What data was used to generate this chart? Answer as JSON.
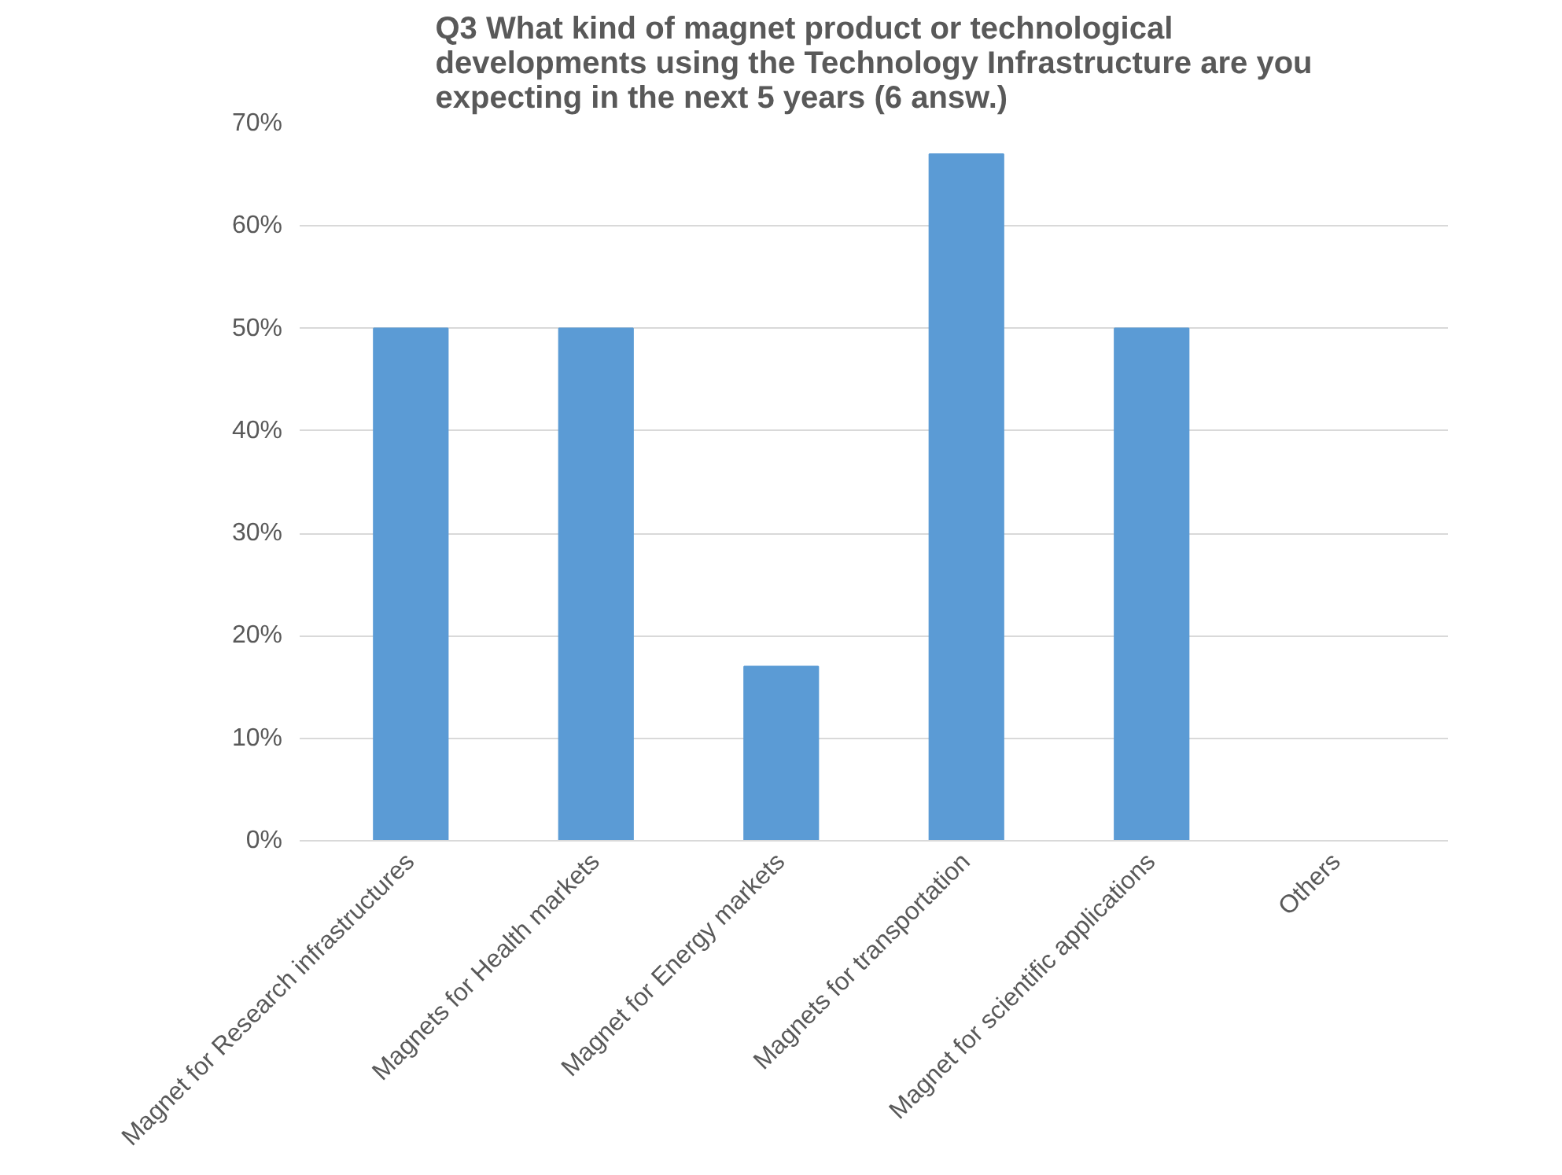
{
  "chart_data": {
    "type": "bar",
    "title": "Q3 What kind of magnet product or technological developments using the Technology Infrastructure are you expecting in the next 5 years (6 answ.)",
    "categories": [
      "Magnet for Research infrastructures",
      "Magnets for Health markets",
      "Magnet for Energy markets",
      "Magnets for transportation",
      "Magnet for scientific applications",
      "Others"
    ],
    "values": [
      50,
      50,
      17,
      67,
      50,
      0
    ],
    "color": "#5b9bd5",
    "ylim": [
      0,
      70
    ],
    "yticks": [
      {
        "value": 0,
        "label": "0%"
      },
      {
        "value": 10,
        "label": "10%"
      },
      {
        "value": 20,
        "label": "20%"
      },
      {
        "value": 30,
        "label": "30%"
      },
      {
        "value": 40,
        "label": "40%"
      },
      {
        "value": 50,
        "label": "50%"
      },
      {
        "value": 60,
        "label": "60%"
      },
      {
        "value": 70,
        "label": "70%"
      }
    ],
    "grid": "y"
  }
}
